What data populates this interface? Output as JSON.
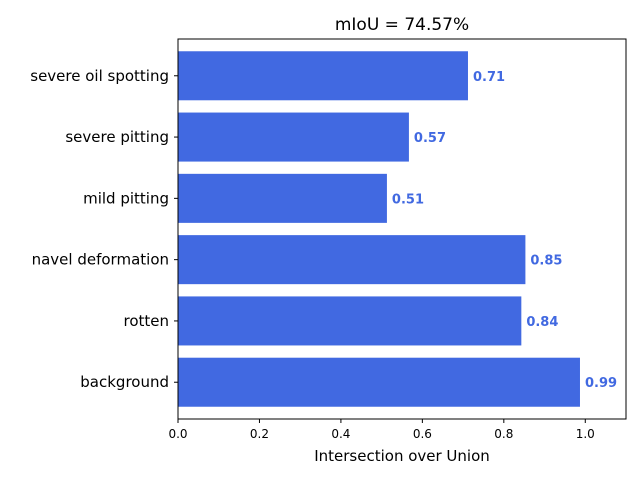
{
  "chart_data": {
    "type": "bar",
    "orientation": "horizontal",
    "title": "mIoU = 74.57%",
    "xlabel": "Intersection over Union",
    "ylabel": "",
    "categories": [
      "severe oil spotting",
      "severe pitting",
      "mild pitting",
      "navel deformation",
      "rotten",
      "background"
    ],
    "values": [
      0.712,
      0.567,
      0.513,
      0.853,
      0.843,
      0.987
    ],
    "value_labels": [
      "0.71",
      "0.57",
      "0.51",
      "0.85",
      "0.84",
      "0.99"
    ],
    "xlim": [
      0,
      1.1
    ],
    "xticks": [
      0.0,
      0.2,
      0.4,
      0.6,
      0.8,
      1.0
    ],
    "xtick_labels": [
      "0.0",
      "0.2",
      "0.4",
      "0.6",
      "0.8",
      "1.0"
    ],
    "grid": false,
    "legend": "none",
    "bar_color": "#4169E1",
    "label_color": "#4169E1"
  }
}
